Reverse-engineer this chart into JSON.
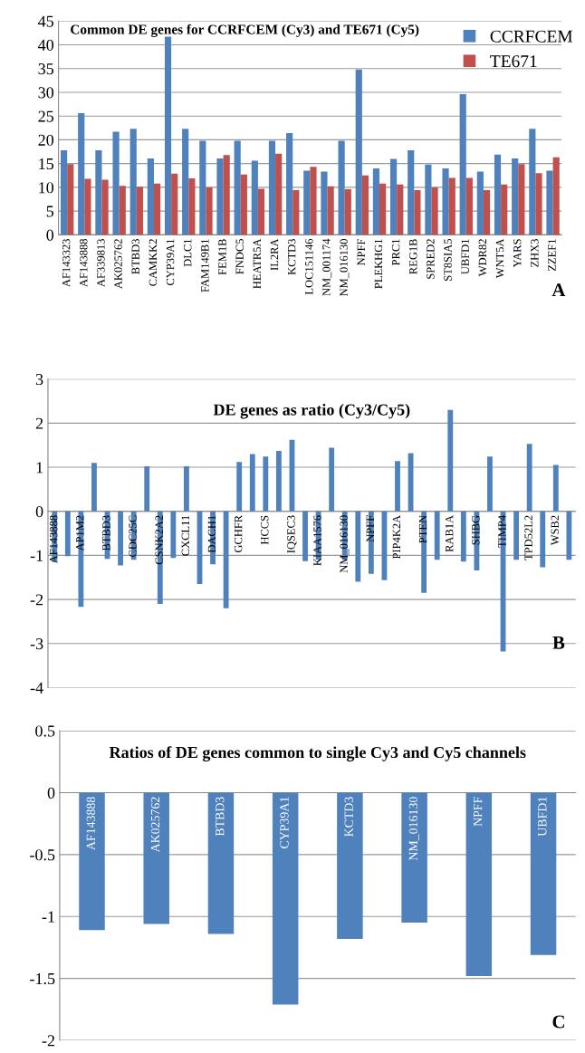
{
  "chart_data": [
    {
      "type": "bar",
      "title": "Common DE genes for CCRFCEM (Cy3) and TE671 (Cy5)",
      "categories": [
        "AF143323",
        "AF143888",
        "AF339813",
        "AK025762",
        "BTBD3",
        "CAMKK2",
        "CYP39A1",
        "DLC1",
        "FAM149B1",
        "FEM1B",
        "FNDC5",
        "HEATR5A",
        "IL2RA",
        "KCTD3",
        "LOC151146",
        "NM_001174",
        "NM_016130",
        "NPFF",
        "PLEKHG1",
        "PRC1",
        "REG1B",
        "SPRED2",
        "ST8SIA5",
        "UBFD1",
        "WDR82",
        "WNT5A",
        "YARS",
        "ZHX3",
        "ZZEF1"
      ],
      "series": [
        {
          "name": "CCRFCEM",
          "color": "#4f81bd",
          "values": [
            17.8,
            25.6,
            17.8,
            21.7,
            22.3,
            16.1,
            41.7,
            22.3,
            19.8,
            16.1,
            19.8,
            15.6,
            19.8,
            21.4,
            13.5,
            13.3,
            19.8,
            34.8,
            14.0,
            16.0,
            17.8,
            14.8,
            14.0,
            29.6,
            13.3,
            16.9,
            16.1,
            22.3,
            13.5
          ]
        },
        {
          "name": "TE671",
          "color": "#c0504d",
          "values": [
            14.9,
            11.8,
            11.6,
            10.3,
            10.1,
            10.8,
            12.9,
            11.9,
            10.0,
            16.8,
            12.7,
            9.7,
            17.1,
            9.4,
            14.3,
            10.2,
            9.6,
            12.5,
            10.8,
            10.6,
            9.4,
            10.0,
            12.0,
            12.0,
            9.4,
            10.6,
            14.9,
            13.0,
            16.3
          ]
        }
      ],
      "ylim": [
        0,
        45
      ],
      "yticks": [
        0,
        5,
        10,
        15,
        20,
        25,
        30,
        35,
        40,
        45
      ],
      "grid": "y",
      "legend": "top right",
      "annotations": [
        "A"
      ]
    },
    {
      "type": "bar",
      "title": "DE genes as ratio (Cy3/Cy5)",
      "categories": [
        "AF143888",
        null,
        "AP1M2",
        null,
        "BTBD3",
        null,
        "CDC25C",
        null,
        "CSNK2A2",
        null,
        "CXCL11",
        null,
        "DACH1",
        null,
        "GCHFR",
        null,
        "HCCS",
        null,
        "IQSEC3",
        null,
        "KIAA1576",
        null,
        "NM_016130",
        null,
        "NPFF",
        null,
        "PIP4K2A",
        null,
        "PTEN",
        null,
        "RAB1A",
        null,
        "SHBG",
        null,
        "TIMP4",
        null,
        "TPD52L2",
        null,
        "WSB2",
        null
      ],
      "series": [
        {
          "color": "#4f81bd",
          "values": [
            -1.15,
            -1.02,
            -2.17,
            1.1,
            -1.08,
            -1.23,
            -1.1,
            1.02,
            -2.1,
            -1.06,
            1.02,
            -1.65,
            -1.2,
            -2.2,
            1.12,
            1.3,
            1.24,
            1.37,
            1.62,
            -1.13,
            -1.1,
            1.44,
            -1.1,
            -1.6,
            -1.42,
            -1.56,
            1.14,
            1.32,
            -1.85,
            -1.1,
            2.3,
            -1.14,
            -1.34,
            1.24,
            -3.18,
            -1.1,
            1.53,
            -1.27,
            1.05,
            -1.1
          ]
        }
      ],
      "ylim": [
        -4,
        3
      ],
      "yticks": [
        -4,
        -3,
        -2,
        -1,
        0,
        1,
        2,
        3
      ],
      "grid": "y",
      "annotations": [
        "B"
      ]
    },
    {
      "type": "bar",
      "title": "Ratios of DE genes common to single Cy3 and Cy5 channels",
      "categories": [
        "AF143888",
        "AK025762",
        "BTBD3",
        "CYP39A1",
        "KCTD3",
        "NM_016130",
        "NPFF",
        "UBFD1"
      ],
      "series": [
        {
          "color": "#4f81bd",
          "values": [
            -1.11,
            -1.06,
            -1.14,
            -1.71,
            -1.18,
            -1.05,
            -1.48,
            -1.31
          ]
        }
      ],
      "ylim": [
        -2,
        0.5
      ],
      "yticks": [
        -2,
        -1.5,
        -1,
        -0.5,
        0,
        0.5
      ],
      "grid": "y",
      "annotations": [
        "C"
      ]
    }
  ]
}
